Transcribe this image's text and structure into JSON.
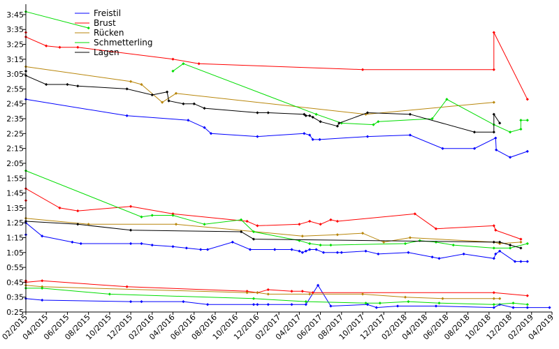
{
  "chart_data": {
    "type": "line",
    "title": "",
    "xlabel": "",
    "ylabel": "",
    "x_ticks": [
      "02/2015",
      "04/2015",
      "06/2015",
      "08/2015",
      "10/2015",
      "12/2015",
      "02/2016",
      "04/2016",
      "06/2016",
      "08/2016",
      "10/2016",
      "12/2016",
      "02/2017",
      "04/2017",
      "06/2017",
      "08/2017",
      "10/2017",
      "12/2017",
      "02/2018",
      "04/2018",
      "06/2018",
      "08/2018",
      "10/2018",
      "12/2018",
      "02/2019",
      "04/2019"
    ],
    "y_ticks": [
      "0:25",
      "0:35",
      "0:45",
      "0:55",
      "1:05",
      "1:15",
      "1:25",
      "1:35",
      "1:45",
      "1:55",
      "2:05",
      "2:15",
      "2:25",
      "2:35",
      "2:45",
      "2:55",
      "3:05",
      "3:15",
      "3:25",
      "3:35",
      "3:45"
    ],
    "xlim": [
      "2015-02-01",
      "2019-04-01"
    ],
    "ylim_seconds": [
      25,
      232
    ],
    "grid": false,
    "legend_position": "top-left",
    "series": [
      {
        "name": "Freistil",
        "color": "#0000ff",
        "segments": [
          [
            [
              "2015-02-01",
              168
            ],
            [
              "2015-11-20",
              157
            ],
            [
              "2016-05-15",
              154
            ],
            [
              "2016-07-01",
              149
            ],
            [
              "2016-07-20",
              145
            ],
            [
              "2016-12-01",
              143
            ],
            [
              "2017-04-15",
              145
            ],
            [
              "2017-05-01",
              144
            ],
            [
              "2017-05-10",
              141
            ],
            [
              "2017-05-30",
              141
            ],
            [
              "2017-10-15",
              143
            ],
            [
              "2018-02-15",
              144
            ],
            [
              "2018-05-20",
              135
            ],
            [
              "2018-08-20",
              135
            ],
            [
              "2018-10-20",
              142
            ],
            [
              "2018-10-22",
              134
            ],
            [
              "2018-12-01",
              129
            ],
            [
              "2019-01-20",
              133
            ]
          ],
          [
            [
              "2015-02-01",
              77
            ],
            [
              "2015-02-01",
              85
            ],
            [
              "2015-03-20",
              76
            ],
            [
              "2015-06-15",
              72
            ],
            [
              "2015-07-10",
              71
            ],
            [
              "2015-12-01",
              71
            ],
            [
              "2016-01-01",
              71
            ],
            [
              "2016-02-01",
              70
            ],
            [
              "2016-04-01",
              69
            ],
            [
              "2016-05-10",
              68
            ],
            [
              "2016-06-20",
              67
            ],
            [
              "2016-07-10",
              67
            ],
            [
              "2016-09-20",
              72
            ],
            [
              "2016-11-10",
              67
            ],
            [
              "2017-01-20",
              67
            ],
            [
              "2017-03-10",
              67
            ],
            [
              "2017-04-01",
              66
            ],
            [
              "2017-04-10",
              65
            ],
            [
              "2017-04-20",
              66
            ],
            [
              "2017-05-01",
              67
            ],
            [
              "2017-05-20",
              67
            ],
            [
              "2017-06-10",
              65
            ],
            [
              "2017-07-20",
              65
            ],
            [
              "2017-08-01",
              65
            ],
            [
              "2017-10-10",
              66
            ],
            [
              "2017-11-15",
              64
            ],
            [
              "2018-02-10",
              65
            ],
            [
              "2018-04-20",
              62
            ],
            [
              "2018-05-10",
              61
            ],
            [
              "2018-07-20",
              64
            ],
            [
              "2018-10-15",
              61
            ],
            [
              "2018-10-20",
              64
            ],
            [
              "2018-11-01",
              66
            ],
            [
              "2018-12-15",
              59
            ],
            [
              "2019-01-01",
              59
            ],
            [
              "2019-01-20",
              59
            ]
          ],
          [
            [
              "2015-02-01",
              34
            ],
            [
              "2015-03-20",
              33
            ],
            [
              "2015-12-01",
              32
            ],
            [
              "2016-01-01",
              32
            ],
            [
              "2016-05-01",
              32
            ],
            [
              "2016-07-10",
              30
            ],
            [
              "2016-11-20",
              30
            ],
            [
              "2016-12-01",
              30
            ],
            [
              "2017-01-01",
              30
            ],
            [
              "2017-03-10",
              30
            ],
            [
              "2017-04-20",
              30
            ],
            [
              "2017-05-25",
              43
            ],
            [
              "2017-07-01",
              29
            ],
            [
              "2017-10-15",
              30
            ],
            [
              "2017-11-10",
              28
            ],
            [
              "2018-01-10",
              29
            ],
            [
              "2018-05-01",
              29
            ],
            [
              "2018-10-15",
              28
            ],
            [
              "2018-11-01",
              30
            ],
            [
              "2018-12-10",
              28
            ],
            [
              "2019-01-20",
              28
            ],
            [
              "2019-03-25",
              28
            ]
          ]
        ]
      },
      {
        "name": "Brust",
        "color": "#ff0000",
        "segments": [
          [
            [
              "2015-02-01",
              213
            ],
            [
              "2015-02-01",
              210
            ],
            [
              "2015-04-01",
              204
            ],
            [
              "2015-05-10",
              203
            ],
            [
              "2015-07-01",
              203
            ],
            [
              "2016-04-01",
              195
            ],
            [
              "2016-06-15",
              192
            ],
            [
              "2017-10-01",
              188
            ],
            [
              "2018-10-15",
              188
            ],
            [
              "2018-10-15",
              213
            ],
            [
              "2019-01-20",
              168
            ]
          ],
          [
            [
              "2015-02-01",
              100
            ],
            [
              "2015-02-01",
              108
            ],
            [
              "2015-05-10",
              95
            ],
            [
              "2015-07-01",
              93
            ],
            [
              "2015-12-01",
              96
            ],
            [
              "2016-04-01",
              91
            ],
            [
              "2016-11-01",
              86
            ],
            [
              "2016-12-01",
              83
            ],
            [
              "2017-04-01",
              84
            ],
            [
              "2017-05-01",
              86
            ],
            [
              "2017-06-01",
              84
            ],
            [
              "2017-07-01",
              87
            ],
            [
              "2017-07-20",
              86
            ],
            [
              "2018-03-01",
              91
            ],
            [
              "2018-05-01",
              81
            ],
            [
              "2018-10-15",
              83
            ],
            [
              "2018-10-20",
              80
            ],
            [
              "2019-01-01",
              74
            ]
          ],
          [
            [
              "2015-02-01",
              46
            ],
            [
              "2015-02-01",
              45
            ],
            [
              "2015-03-20",
              46
            ],
            [
              "2015-11-20",
              42
            ],
            [
              "2016-11-01",
              39
            ],
            [
              "2016-12-01",
              38
            ],
            [
              "2017-01-01",
              40
            ],
            [
              "2017-03-10",
              39
            ],
            [
              "2017-04-10",
              39
            ],
            [
              "2017-05-10",
              38
            ],
            [
              "2018-10-15",
              38
            ],
            [
              "2019-01-20",
              36
            ]
          ]
        ]
      },
      {
        "name": "Rücken",
        "color": "#b8860b",
        "segments": [
          [
            [
              "2015-02-01",
              190
            ],
            [
              "2015-12-01",
              180
            ],
            [
              "2016-01-01",
              178
            ],
            [
              "2016-03-01",
              166
            ],
            [
              "2016-04-10",
              172
            ],
            [
              "2017-10-10",
              158
            ],
            [
              "2018-10-15",
              166
            ]
          ],
          [
            [
              "2015-02-01",
              88
            ],
            [
              "2015-08-01",
              84
            ],
            [
              "2016-04-10",
              84
            ],
            [
              "2017-04-10",
              76
            ],
            [
              "2017-07-20",
              77
            ],
            [
              "2017-10-01",
              78
            ],
            [
              "2017-12-01",
              72
            ],
            [
              "2018-02-15",
              75
            ],
            [
              "2018-10-15",
              72
            ],
            [
              "2018-11-01",
              71
            ],
            [
              "2019-01-01",
              72
            ]
          ],
          [
            [
              "2015-02-01",
              43
            ],
            [
              "2015-03-20",
              42
            ],
            [
              "2016-11-01",
              38
            ],
            [
              "2016-12-01",
              38
            ],
            [
              "2017-01-01",
              37
            ],
            [
              "2017-05-01",
              37
            ],
            [
              "2017-10-01",
              37
            ],
            [
              "2018-02-01",
              35
            ],
            [
              "2018-05-20",
              34
            ],
            [
              "2018-10-15",
              34
            ],
            [
              "2018-11-01",
              34
            ]
          ]
        ]
      },
      {
        "name": "Schmetterling",
        "color": "#00dd00",
        "segments": [
          [
            [
              "2015-02-01",
              227
            ],
            [
              "2015-08-01",
              216
            ]
          ],
          [
            [
              "2016-04-01",
              187
            ],
            [
              "2016-05-01",
              192
            ],
            [
              "2017-05-20",
              158
            ],
            [
              "2017-08-01",
              152
            ],
            [
              "2017-11-01",
              151
            ],
            [
              "2017-11-15",
              153
            ],
            [
              "2018-04-20",
              155
            ],
            [
              "2018-06-01",
              168
            ],
            [
              "2018-10-15",
              151
            ],
            [
              "2018-12-01",
              146
            ],
            [
              "2019-01-01",
              148
            ],
            [
              "2019-01-01",
              154
            ],
            [
              "2019-01-20",
              154
            ]
          ],
          [
            [
              "2015-02-01",
              120
            ],
            [
              "2016-01-01",
              89
            ],
            [
              "2016-02-01",
              90
            ],
            [
              "2016-04-01",
              90
            ],
            [
              "2016-07-01",
              84
            ],
            [
              "2016-10-15",
              87
            ],
            [
              "2016-11-20",
              79
            ],
            [
              "2017-04-01",
              73
            ],
            [
              "2017-05-01",
              71
            ],
            [
              "2017-06-01",
              70
            ],
            [
              "2017-07-01",
              70
            ],
            [
              "2018-02-01",
              71
            ],
            [
              "2018-03-15",
              73
            ],
            [
              "2018-05-01",
              72
            ],
            [
              "2018-06-20",
              70
            ],
            [
              "2018-10-15",
              68
            ],
            [
              "2018-12-01",
              68
            ],
            [
              "2019-01-20",
              71
            ]
          ],
          [
            [
              "2015-02-01",
              41
            ],
            [
              "2015-03-20",
              41
            ],
            [
              "2015-10-01",
              37
            ],
            [
              "2016-11-20",
              34
            ],
            [
              "2017-04-20",
              32
            ],
            [
              "2017-10-10",
              31
            ],
            [
              "2017-11-20",
              31
            ],
            [
              "2018-02-10",
              32
            ],
            [
              "2018-05-10",
              31
            ],
            [
              "2018-10-15",
              30
            ],
            [
              "2018-12-10",
              31
            ],
            [
              "2019-01-20",
              30
            ]
          ]
        ]
      },
      {
        "name": "Lagen",
        "color": "#000000",
        "segments": [
          [
            [
              "2015-02-01",
              187
            ],
            [
              "2015-02-01",
              184
            ],
            [
              "2015-04-01",
              178
            ],
            [
              "2015-06-01",
              178
            ],
            [
              "2015-07-01",
              177
            ],
            [
              "2015-11-20",
              175
            ],
            [
              "2016-02-01",
              171
            ],
            [
              "2016-03-15",
              173
            ],
            [
              "2016-03-20",
              167
            ],
            [
              "2016-05-01",
              165
            ],
            [
              "2016-06-01",
              165
            ],
            [
              "2016-07-01",
              162
            ],
            [
              "2016-12-01",
              159
            ],
            [
              "2017-01-01",
              159
            ],
            [
              "2017-04-15",
              158
            ],
            [
              "2017-04-20",
              157
            ],
            [
              "2017-05-01",
              157
            ],
            [
              "2017-05-10",
              156
            ],
            [
              "2017-06-01",
              153
            ],
            [
              "2017-07-20",
              150
            ],
            [
              "2017-07-25",
              152
            ],
            [
              "2017-10-15",
              159
            ],
            [
              "2018-02-15",
              158
            ],
            [
              "2018-08-20",
              146
            ],
            [
              "2018-10-15",
              146
            ],
            [
              "2018-10-15",
              158
            ],
            [
              "2018-11-01",
              152
            ]
          ],
          [
            [
              "2015-02-01",
              86
            ],
            [
              "2015-07-01",
              84
            ],
            [
              "2015-12-01",
              80
            ],
            [
              "2016-10-15",
              79
            ],
            [
              "2016-11-20",
              74
            ],
            [
              "2018-10-15",
              72
            ],
            [
              "2018-11-01",
              72
            ],
            [
              "2018-12-01",
              70
            ],
            [
              "2019-01-01",
              68
            ]
          ]
        ]
      }
    ]
  }
}
